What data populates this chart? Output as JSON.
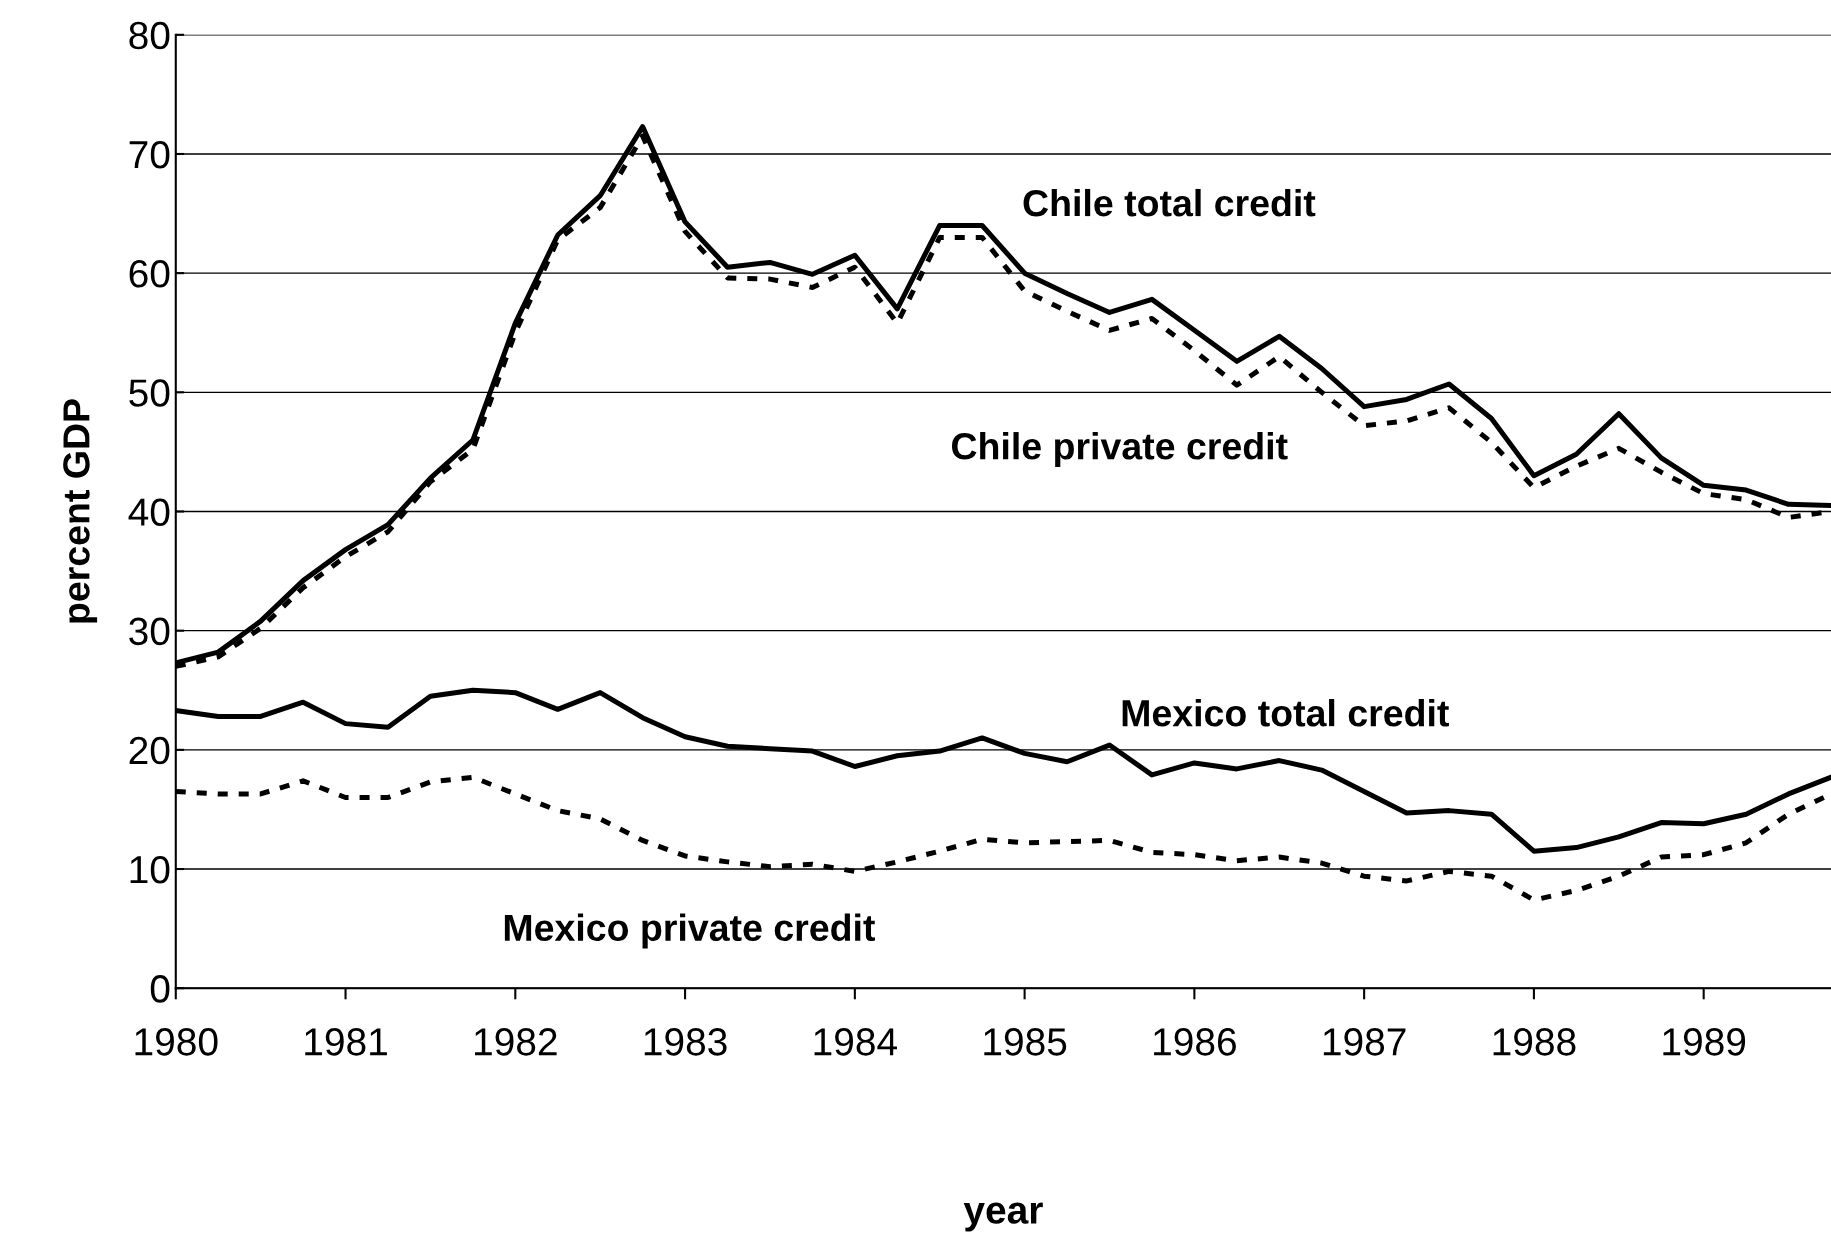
{
  "chart_data": {
    "type": "line",
    "xlabel": "year",
    "ylabel": "percent GDP",
    "x": [
      1980,
      1980.25,
      1980.5,
      1980.75,
      1981,
      1981.25,
      1981.5,
      1981.75,
      1982,
      1982.25,
      1982.5,
      1982.75,
      1983,
      1983.25,
      1983.5,
      1983.75,
      1984,
      1984.25,
      1984.5,
      1984.75,
      1985,
      1985.25,
      1985.5,
      1985.75,
      1986,
      1986.25,
      1986.5,
      1986.75,
      1987,
      1987.25,
      1987.5,
      1987.75,
      1988,
      1988.25,
      1988.5,
      1988.75,
      1989,
      1989.25,
      1989.5,
      1989.75
    ],
    "series": [
      {
        "name": "Chile total credit",
        "color": "#000000",
        "line_style": "solid",
        "values": [
          27.3,
          28.2,
          30.8,
          34.2,
          36.8,
          38.9,
          42.8,
          46,
          55.8,
          63.2,
          66.5,
          72.3,
          64.3,
          60.5,
          60.9,
          59.9,
          61.5,
          57,
          64,
          64,
          60,
          58.3,
          56.7,
          57.8,
          55.2,
          52.6,
          54.7,
          52,
          48.8,
          49.4,
          50.7,
          47.8,
          43,
          44.8,
          48.2,
          44.5,
          42.2,
          41.8,
          40.6,
          40.5
        ]
      },
      {
        "name": "Chile private credit",
        "color": "#000000",
        "line_style": "dashed",
        "values": [
          27,
          27.8,
          30.2,
          33.6,
          36.2,
          38.3,
          42.5,
          45.2,
          55,
          62.8,
          65.5,
          71.5,
          63.5,
          59.6,
          59.5,
          58.8,
          60.5,
          55.8,
          63,
          63,
          58.5,
          56.8,
          55.2,
          56.2,
          53.5,
          50.6,
          53,
          50,
          47.2,
          47.6,
          48.7,
          45.8,
          42,
          43.8,
          45.3,
          43.3,
          41.5,
          41,
          39.5,
          40
        ]
      },
      {
        "name": "Mexico total credit",
        "color": "#000000",
        "line_style": "solid",
        "values": [
          23.3,
          22.8,
          22.8,
          24,
          22.2,
          21.9,
          24.5,
          25,
          24.8,
          23.4,
          24.8,
          22.7,
          21.1,
          20.3,
          20.1,
          19.9,
          18.6,
          19.5,
          19.9,
          21,
          19.7,
          19,
          20.4,
          17.9,
          18.9,
          18.4,
          19.1,
          18.3,
          16.5,
          14.7,
          14.9,
          14.6,
          11.5,
          11.8,
          12.7,
          13.9,
          13.8,
          14.6,
          16.3,
          17.7
        ]
      },
      {
        "name": "Mexico private credit",
        "color": "#000000",
        "line_style": "dashed",
        "values": [
          16.5,
          16.3,
          16.3,
          17.4,
          16,
          16,
          17.3,
          17.7,
          16.3,
          14.9,
          14.2,
          12.4,
          11.1,
          10.6,
          10.2,
          10.4,
          9.8,
          10.6,
          11.5,
          12.5,
          12.2,
          12.3,
          12.4,
          11.4,
          11.2,
          10.7,
          11,
          10.5,
          9.4,
          9,
          9.8,
          9.4,
          7.4,
          8.2,
          9.4,
          11,
          11.2,
          12.2,
          14.6,
          16.3
        ]
      }
    ],
    "xlim": [
      1980,
      1989.75
    ],
    "xticks": [
      1980,
      1981,
      1982,
      1983,
      1984,
      1985,
      1986,
      1987,
      1988,
      1989
    ],
    "ylim": [
      0,
      80
    ],
    "yticks": [
      0,
      10,
      20,
      30,
      40,
      50,
      60,
      70,
      80
    ],
    "grid": "y",
    "legend": false,
    "marker": "none"
  }
}
